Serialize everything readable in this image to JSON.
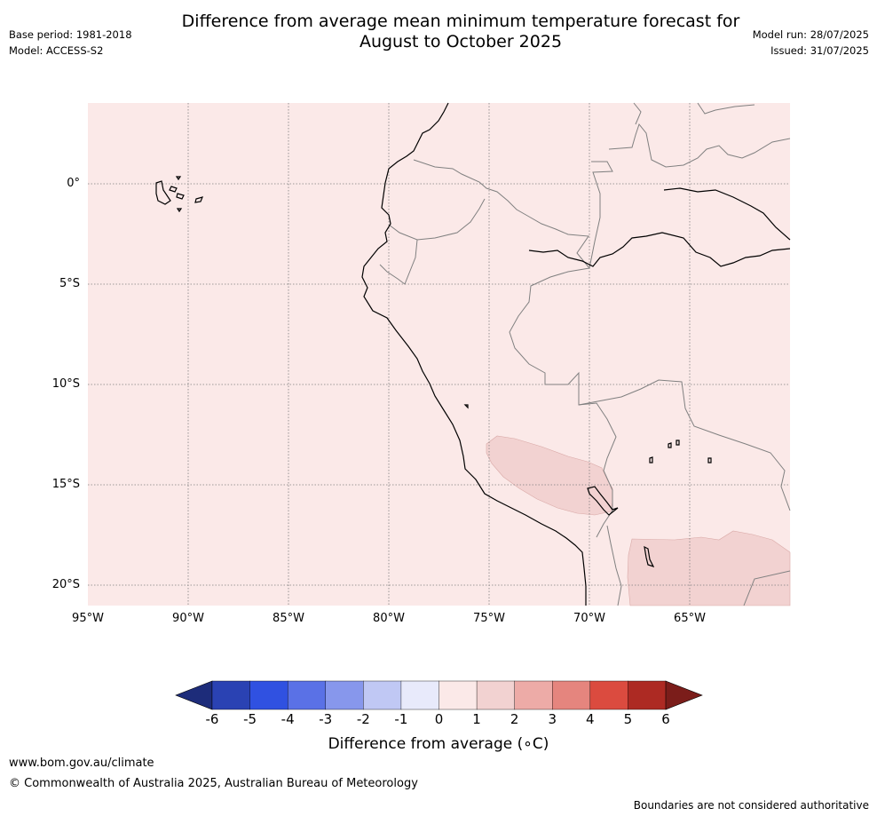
{
  "title": {
    "line1": "Difference from average mean minimum temperature forecast for",
    "line2": "August to October 2025"
  },
  "meta_left": {
    "base_period": "Base period: 1981-2018",
    "model": "Model: ACCESS-S2"
  },
  "meta_right": {
    "model_run": "Model run: 28/07/2025",
    "issued": "Issued: 31/07/2025"
  },
  "map": {
    "region": "Western South America (Peru)",
    "lon_range": [
      -95,
      -60
    ],
    "lat_range": [
      -21,
      4
    ],
    "lat_labels": [
      "0°",
      "5°S",
      "10°S",
      "15°S",
      "20°S"
    ],
    "lon_labels": [
      "95°W",
      "90°W",
      "85°W",
      "80°W",
      "75°W",
      "70°W",
      "65°W"
    ],
    "background_category": "0 to 1",
    "highlight_category": "1 to 2",
    "colors": {
      "land_ocean_fill": "#fbe9e8",
      "anomaly_1_2": "#f2d2d1",
      "coastline": "#000000",
      "borders": "#808080",
      "grid": "#7f7f7f"
    }
  },
  "colorbar": {
    "title": "Difference from average (∘C)",
    "ticks": [
      "-6",
      "-5",
      "-4",
      "-3",
      "-2",
      "-1",
      "0",
      "1",
      "2",
      "3",
      "4",
      "5",
      "6"
    ],
    "colors": [
      "#1d2c7a",
      "#2a42b3",
      "#3051e1",
      "#5a71e6",
      "#8797ec",
      "#c0c8f4",
      "#e8eafb",
      "#fbe9e8",
      "#f2d2d1",
      "#edaba7",
      "#e5857e",
      "#db4b3f",
      "#ad2a23",
      "#7b1d1a"
    ]
  },
  "footer": {
    "url": "www.bom.gov.au/climate",
    "copyright": "© Commonwealth of Australia 2025, Australian Bureau of Meteorology",
    "note": "Boundaries are not considered authoritative"
  }
}
